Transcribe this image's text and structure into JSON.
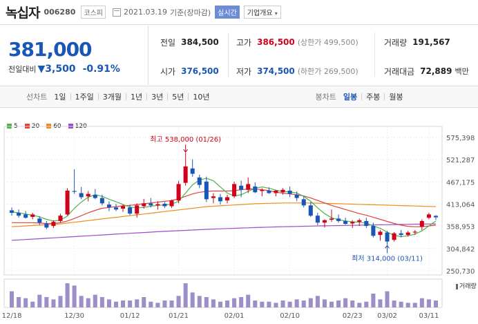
{
  "header": {
    "stock_name": "녹십자",
    "stock_code": "006280",
    "market": "코스피",
    "date": "2021.03.19",
    "date_suffix": "기준(장마감)",
    "live_label": "실시간",
    "corp_label": "기업개요"
  },
  "price": {
    "current": "381,000",
    "change_label": "전일대비",
    "change_arrow": "▼",
    "change_amount": "3,500",
    "change_percent": "-0.91%"
  },
  "summary": {
    "prev_close_label": "전일",
    "prev_close": "384,500",
    "high_label": "고가",
    "high": "386,500",
    "upper_limit": "(상한가 499,500)",
    "volume_label": "거래량",
    "volume": "191,567",
    "open_label": "시가",
    "open": "376,500",
    "low_label": "저가",
    "low": "374,500",
    "lower_limit": "(하한가 269,500)",
    "amount_label": "거래대금",
    "amount": "72,889",
    "amount_unit": "백만"
  },
  "tabs": {
    "line_label": "선차트",
    "line_tabs": [
      "1일",
      "1주일",
      "3개월",
      "1년",
      "3년",
      "5년",
      "10년"
    ],
    "candle_label": "봉차트",
    "candle_tabs": [
      "일봉",
      "주봉",
      "월봉"
    ],
    "active_candle": "일봉"
  },
  "legend": [
    "5",
    "20",
    "60",
    "120"
  ],
  "colors": {
    "up": "#d0021b",
    "down": "#1a56b5",
    "ma5": "#4cb24c",
    "ma20": "#e0423a",
    "ma60": "#f08c1e",
    "ma120": "#9b4dc8"
  },
  "chart_data": {
    "type": "candlestick",
    "y_ticks": [
      "575,398",
      "521,287",
      "467,175",
      "413,064",
      "358,953",
      "304,842",
      "250,730"
    ],
    "ylim": [
      250730,
      575398
    ],
    "x_ticks": [
      "12/18",
      "12/30",
      "01/12",
      "01/21",
      "02/01",
      "02/10",
      "02/23",
      "03/02",
      "03/11"
    ],
    "volume_label": "거래량",
    "annotations": {
      "high": "최고 538,000 (01/26)",
      "low": "최저 314,000 (03/11)"
    },
    "candles": [
      {
        "o": 398000,
        "h": 405000,
        "l": 385000,
        "c": 392000
      },
      {
        "o": 392000,
        "h": 400000,
        "l": 380000,
        "c": 385000
      },
      {
        "o": 388000,
        "h": 396000,
        "l": 378000,
        "c": 380000
      },
      {
        "o": 382000,
        "h": 392000,
        "l": 376000,
        "c": 388000
      },
      {
        "o": 378000,
        "h": 384000,
        "l": 362000,
        "c": 368000
      },
      {
        "o": 366000,
        "h": 372000,
        "l": 352000,
        "c": 356000
      },
      {
        "o": 360000,
        "h": 374000,
        "l": 355000,
        "c": 370000
      },
      {
        "o": 372000,
        "h": 390000,
        "l": 368000,
        "c": 385000
      },
      {
        "o": 388000,
        "h": 452000,
        "l": 385000,
        "c": 446000
      },
      {
        "o": 445000,
        "h": 498000,
        "l": 438000,
        "c": 443000
      },
      {
        "o": 440000,
        "h": 455000,
        "l": 425000,
        "c": 430000
      },
      {
        "o": 432000,
        "h": 445000,
        "l": 420000,
        "c": 438000
      },
      {
        "o": 436000,
        "h": 450000,
        "l": 425000,
        "c": 428000
      },
      {
        "o": 428000,
        "h": 436000,
        "l": 410000,
        "c": 415000
      },
      {
        "o": 412000,
        "h": 420000,
        "l": 396000,
        "c": 405000
      },
      {
        "o": 405000,
        "h": 414000,
        "l": 396000,
        "c": 400000
      },
      {
        "o": 402000,
        "h": 412000,
        "l": 394000,
        "c": 408000
      },
      {
        "o": 405000,
        "h": 412000,
        "l": 386000,
        "c": 390000
      },
      {
        "o": 390000,
        "h": 415000,
        "l": 380000,
        "c": 410000
      },
      {
        "o": 408000,
        "h": 426000,
        "l": 402000,
        "c": 415000
      },
      {
        "o": 415000,
        "h": 428000,
        "l": 405000,
        "c": 410000
      },
      {
        "o": 410000,
        "h": 420000,
        "l": 400000,
        "c": 413000
      },
      {
        "o": 414000,
        "h": 418000,
        "l": 404000,
        "c": 408000
      },
      {
        "o": 408000,
        "h": 424000,
        "l": 404000,
        "c": 422000
      },
      {
        "o": 422000,
        "h": 470000,
        "l": 415000,
        "c": 462000
      },
      {
        "o": 465000,
        "h": 538000,
        "l": 458000,
        "c": 505000
      },
      {
        "o": 500000,
        "h": 522000,
        "l": 480000,
        "c": 487000
      },
      {
        "o": 478000,
        "h": 485000,
        "l": 452000,
        "c": 460000
      },
      {
        "o": 468000,
        "h": 480000,
        "l": 418000,
        "c": 425000
      },
      {
        "o": 428000,
        "h": 440000,
        "l": 415000,
        "c": 432000
      },
      {
        "o": 430000,
        "h": 438000,
        "l": 412000,
        "c": 420000
      },
      {
        "o": 422000,
        "h": 436000,
        "l": 415000,
        "c": 430000
      },
      {
        "o": 432000,
        "h": 468000,
        "l": 428000,
        "c": 462000
      },
      {
        "o": 458000,
        "h": 470000,
        "l": 430000,
        "c": 448000
      },
      {
        "o": 448000,
        "h": 478000,
        "l": 440000,
        "c": 462000
      },
      {
        "o": 456000,
        "h": 466000,
        "l": 440000,
        "c": 442000
      },
      {
        "o": 445000,
        "h": 452000,
        "l": 432000,
        "c": 448000
      },
      {
        "o": 446000,
        "h": 454000,
        "l": 438000,
        "c": 440000
      },
      {
        "o": 440000,
        "h": 448000,
        "l": 432000,
        "c": 446000
      },
      {
        "o": 442000,
        "h": 452000,
        "l": 436000,
        "c": 448000
      },
      {
        "o": 446000,
        "h": 456000,
        "l": 430000,
        "c": 438000
      },
      {
        "o": 436000,
        "h": 444000,
        "l": 420000,
        "c": 428000
      },
      {
        "o": 425000,
        "h": 432000,
        "l": 405000,
        "c": 410000
      },
      {
        "o": 410000,
        "h": 418000,
        "l": 382000,
        "c": 385000
      },
      {
        "o": 385000,
        "h": 392000,
        "l": 362000,
        "c": 368000
      },
      {
        "o": 368000,
        "h": 376000,
        "l": 356000,
        "c": 374000
      },
      {
        "o": 375000,
        "h": 400000,
        "l": 370000,
        "c": 378000
      },
      {
        "o": 378000,
        "h": 388000,
        "l": 368000,
        "c": 372000
      },
      {
        "o": 372000,
        "h": 380000,
        "l": 363000,
        "c": 365000
      },
      {
        "o": 366000,
        "h": 374000,
        "l": 355000,
        "c": 370000
      },
      {
        "o": 370000,
        "h": 378000,
        "l": 360000,
        "c": 374000
      },
      {
        "o": 372000,
        "h": 380000,
        "l": 355000,
        "c": 360000
      },
      {
        "o": 360000,
        "h": 368000,
        "l": 332000,
        "c": 336000
      },
      {
        "o": 338000,
        "h": 350000,
        "l": 324000,
        "c": 346000
      },
      {
        "o": 344000,
        "h": 348000,
        "l": 314000,
        "c": 322000
      },
      {
        "o": 326000,
        "h": 345000,
        "l": 322000,
        "c": 342000
      },
      {
        "o": 342000,
        "h": 350000,
        "l": 332000,
        "c": 338000
      },
      {
        "o": 338000,
        "h": 348000,
        "l": 334000,
        "c": 344000
      },
      {
        "o": 344000,
        "h": 350000,
        "l": 338000,
        "c": 346000
      },
      {
        "o": 358000,
        "h": 376000,
        "l": 350000,
        "c": 372000
      },
      {
        "o": 380000,
        "h": 392000,
        "l": 376000,
        "c": 388000
      },
      {
        "o": 384500,
        "h": 386500,
        "l": 374500,
        "c": 381000
      }
    ],
    "volumes": [
      28,
      18,
      16,
      10,
      22,
      18,
      14,
      20,
      42,
      38,
      20,
      16,
      22,
      18,
      14,
      10,
      12,
      12,
      14,
      18,
      10,
      8,
      12,
      12,
      20,
      42,
      26,
      20,
      18,
      14,
      10,
      12,
      16,
      18,
      22,
      12,
      10,
      10,
      8,
      12,
      10,
      14,
      12,
      16,
      20,
      14,
      10,
      12,
      16,
      12,
      8,
      10,
      24,
      14,
      28,
      12,
      10,
      8,
      8,
      16,
      14,
      12
    ],
    "ma5": [
      394000,
      392000,
      389000,
      386000,
      382000,
      376000,
      372000,
      374000,
      384000,
      403000,
      418000,
      430000,
      436000,
      432000,
      425000,
      419000,
      412000,
      406000,
      404000,
      405000,
      408000,
      410000,
      411000,
      413000,
      420000,
      440000,
      460000,
      472000,
      476000,
      470000,
      455000,
      440000,
      433000,
      436000,
      444000,
      452000,
      455000,
      452000,
      447000,
      444000,
      443000,
      440000,
      432000,
      420000,
      404000,
      390000,
      380000,
      375000,
      372000,
      370000,
      369000,
      367000,
      360000,
      354000,
      345000,
      337000,
      334000,
      336000,
      340000,
      348000,
      360000,
      372000
    ],
    "ma20": [
      368000,
      368000,
      368000,
      368000,
      367000,
      366000,
      366000,
      368000,
      372000,
      378000,
      385000,
      392000,
      398000,
      403000,
      405000,
      407000,
      409000,
      410000,
      412000,
      414000,
      416000,
      418000,
      420000,
      422000,
      426000,
      432000,
      438000,
      442000,
      444000,
      445000,
      445000,
      445000,
      446000,
      448000,
      450000,
      450000,
      448000,
      446000,
      442000,
      440000,
      438000,
      436000,
      433000,
      428000,
      422000,
      416000,
      410000,
      405000,
      400000,
      395000,
      390000,
      386000,
      381000,
      376000,
      371000,
      366000,
      362000,
      359000,
      358000,
      358000,
      360000,
      362000
    ],
    "ma60": [
      358000,
      359000,
      360000,
      361000,
      362000,
      363000,
      364000,
      365000,
      367000,
      369000,
      371000,
      373000,
      375000,
      377000,
      379000,
      381000,
      383000,
      385000,
      387000,
      389000,
      391000,
      393000,
      395000,
      397000,
      399000,
      401000,
      403000,
      405000,
      407000,
      408000,
      409000,
      410000,
      411000,
      412000,
      413000,
      414000,
      414500,
      415000,
      415500,
      416000,
      416000,
      416000,
      416000,
      416000,
      415500,
      415000,
      414500,
      414000,
      413500,
      413000,
      412500,
      412000,
      411500,
      411000,
      410500,
      410000,
      409500,
      409000,
      408500,
      408000,
      407500,
      407000
    ],
    "ma120": [
      325000,
      326000,
      327000,
      328000,
      329000,
      330000,
      331000,
      332000,
      333000,
      334000,
      335000,
      336000,
      337000,
      338000,
      339000,
      340000,
      341000,
      342000,
      343000,
      344000,
      345000,
      346000,
      346800,
      347600,
      348400,
      349200,
      350000,
      350800,
      351600,
      352400,
      353000,
      353600,
      354200,
      354800,
      355400,
      356000,
      356500,
      357000,
      357500,
      358000,
      358400,
      358800,
      359200,
      359600,
      360000,
      360300,
      360600,
      360900,
      361200,
      361500,
      361800,
      362100,
      362400,
      362700,
      363000,
      363300,
      363600,
      363900,
      364200,
      364500,
      364800,
      365000
    ]
  }
}
